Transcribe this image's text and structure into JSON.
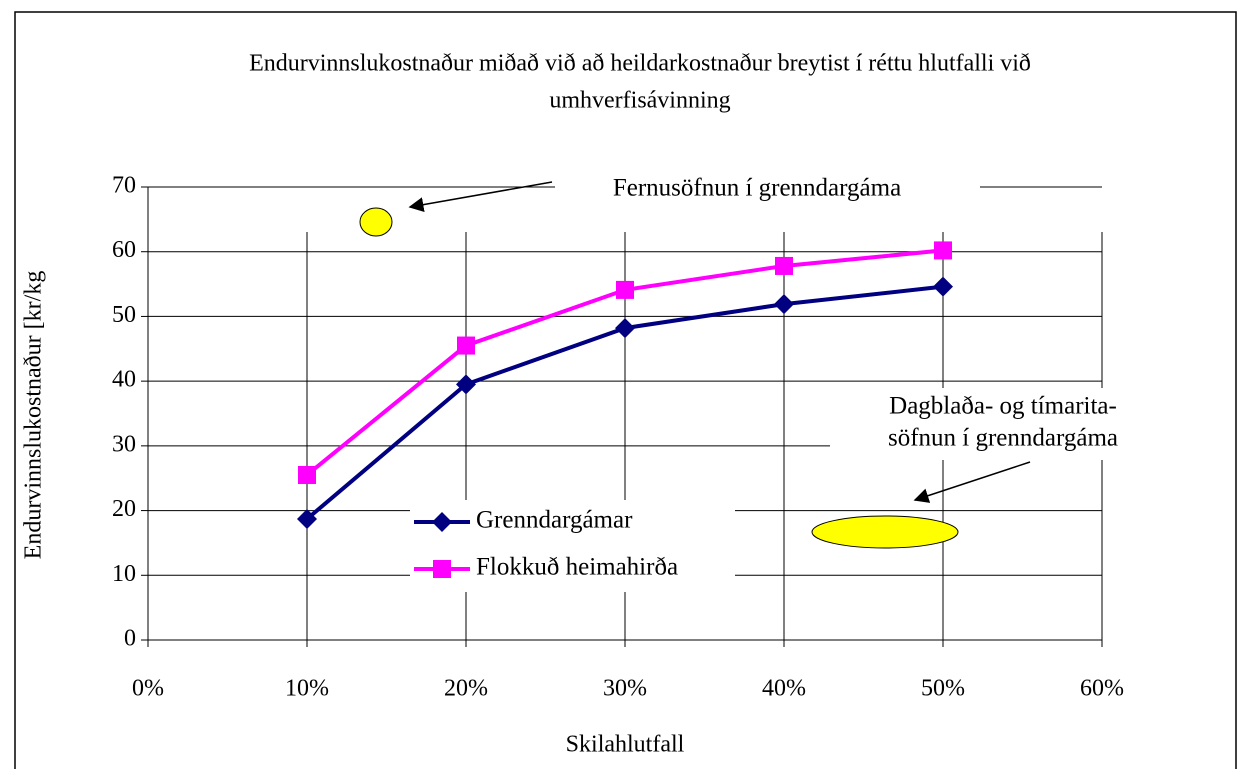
{
  "chart_data": {
    "type": "line",
    "title": [
      "Endurvinnslukostnaður miðað við að heildarkostnaður breytist í réttu hlutfalli við",
      "umhverfisávinning"
    ],
    "xlabel": "Skilahlutfall",
    "ylabel": "Endurvinnslukostnaður [kr/kg",
    "x": [
      10,
      20,
      30,
      40,
      50
    ],
    "series": [
      {
        "name": "Grenndargámar",
        "color": "#000080",
        "marker": "diamond",
        "values": [
          18.7,
          39.5,
          48.2,
          51.9,
          54.6
        ]
      },
      {
        "name": "Flokkuð heimahirða",
        "color": "#ff00ff",
        "marker": "square",
        "values": [
          25.5,
          45.5,
          54.1,
          57.8,
          60.2
        ]
      }
    ],
    "xlim": [
      0,
      60
    ],
    "xticks": [
      {
        "value": 0,
        "label": "0%"
      },
      {
        "value": 10,
        "label": "10%"
      },
      {
        "value": 20,
        "label": "20%"
      },
      {
        "value": 30,
        "label": "30%"
      },
      {
        "value": 40,
        "label": "40%"
      },
      {
        "value": 50,
        "label": "50%"
      },
      {
        "value": 60,
        "label": "60%"
      }
    ],
    "ylim": [
      0,
      70
    ],
    "yticks": [
      0,
      10,
      20,
      30,
      40,
      50,
      60,
      70
    ],
    "grid": true,
    "annotations": [
      "Fernusöfnun í grenndargáma",
      "Dagblaða- og tímarita-",
      "söfnun í grenndargáma"
    ]
  }
}
